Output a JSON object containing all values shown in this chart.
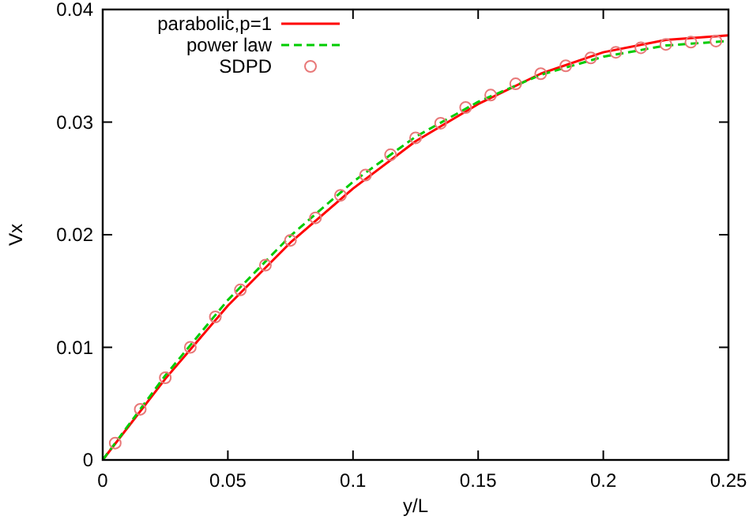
{
  "chart_data": {
    "type": "line",
    "xlabel": "y/L",
    "ylabel": "Vx",
    "xlim": [
      0,
      0.25
    ],
    "ylim": [
      0,
      0.04
    ],
    "xticks": [
      0,
      0.05,
      0.1,
      0.15,
      0.2,
      0.25
    ],
    "yticks": [
      0,
      0.01,
      0.02,
      0.03,
      0.04
    ],
    "grid": false,
    "legend": "top left",
    "series": [
      {
        "name": "parabolic,p=1",
        "color": "#ff0000",
        "line_style": "solid",
        "marker": "none",
        "x": [
          0,
          0.025,
          0.05,
          0.075,
          0.1,
          0.125,
          0.15,
          0.175,
          0.2,
          0.225,
          0.25
        ],
        "values": [
          0,
          0.0072,
          0.0137,
          0.0193,
          0.0241,
          0.0283,
          0.0316,
          0.0343,
          0.0362,
          0.0373,
          0.0377
        ]
      },
      {
        "name": "power law",
        "color": "#00cc00",
        "line_style": "dashed",
        "marker": "none",
        "x": [
          0,
          0.025,
          0.05,
          0.075,
          0.1,
          0.125,
          0.15,
          0.175,
          0.2,
          0.225,
          0.25
        ],
        "values": [
          0,
          0.0075,
          0.0142,
          0.0199,
          0.0247,
          0.0287,
          0.0318,
          0.0342,
          0.0358,
          0.0368,
          0.0372
        ]
      },
      {
        "name": "SDPD",
        "type": "scatter",
        "color": "#e87878",
        "marker": "circle",
        "x": [
          0.005,
          0.015,
          0.025,
          0.035,
          0.045,
          0.055,
          0.065,
          0.075,
          0.085,
          0.095,
          0.105,
          0.115,
          0.125,
          0.135,
          0.145,
          0.155,
          0.165,
          0.175,
          0.185,
          0.195,
          0.205,
          0.215,
          0.225,
          0.235,
          0.245
        ],
        "values": [
          0.0015,
          0.0045,
          0.0073,
          0.01,
          0.0127,
          0.0151,
          0.0173,
          0.0195,
          0.0215,
          0.0235,
          0.0253,
          0.0271,
          0.0286,
          0.0299,
          0.0313,
          0.0324,
          0.0334,
          0.0343,
          0.035,
          0.0357,
          0.0362,
          0.0366,
          0.0369,
          0.0371,
          0.0372
        ]
      }
    ]
  }
}
